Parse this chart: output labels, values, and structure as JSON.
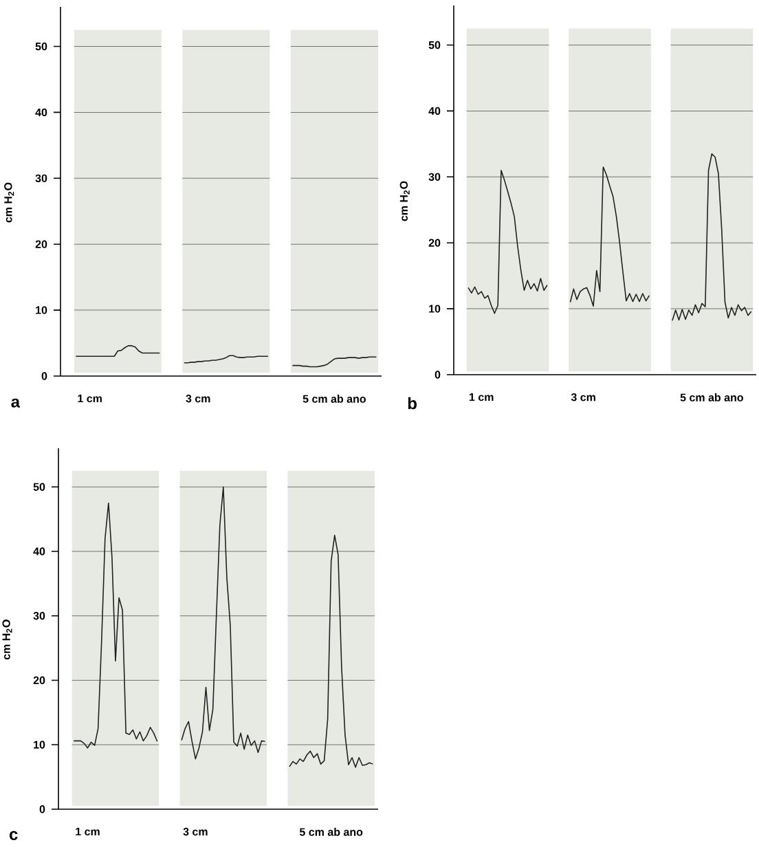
{
  "chart_data": [
    {
      "type": "line",
      "title": "a",
      "ylabel": "cm H$_{2}$O",
      "ylim": [
        0,
        56
      ],
      "yticks": [
        0,
        10,
        20,
        30,
        40,
        50
      ],
      "grid": "y",
      "categories": [
        null,
        null,
        null,
        null,
        "1 cm",
        null,
        null,
        null,
        null,
        null,
        null,
        null,
        null,
        null,
        null,
        null,
        null,
        null,
        null,
        null,
        null,
        null,
        null,
        null,
        null,
        null,
        null,
        null,
        null,
        null,
        null,
        null,
        null,
        null,
        null,
        "3 cm",
        null,
        null,
        null,
        null,
        null,
        null,
        null,
        null,
        null,
        null,
        null,
        null,
        null,
        null,
        null,
        null,
        null,
        null,
        null,
        null,
        null,
        null,
        null,
        null,
        null,
        null,
        null,
        null,
        null,
        null,
        null,
        null,
        null,
        null,
        null,
        null,
        null,
        null,
        "5 cm ab ano",
        null,
        null,
        null,
        null,
        null,
        null,
        null,
        null,
        null,
        null,
        null,
        null
      ],
      "series": [
        {
          "color": "#222222",
          "values": [
            3.0,
            3.0,
            3.0,
            3.0,
            3.0,
            3.0,
            3.0,
            3.0,
            3.0,
            3.0,
            3.0,
            3.0,
            3.8,
            3.9,
            4.3,
            4.6,
            4.6,
            4.4,
            3.8,
            3.5,
            3.5,
            3.5,
            3.5,
            3.5,
            3.5,
            null,
            null,
            null,
            null,
            null,
            null,
            null,
            null,
            null,
            null,
            null,
            null,
            null,
            null,
            null,
            null,
            null,
            null,
            null,
            null,
            null,
            null,
            null,
            null,
            null,
            null,
            null,
            null,
            null,
            null,
            null,
            null,
            null,
            null,
            null,
            null,
            null,
            null,
            null,
            null,
            null,
            null,
            null,
            null,
            null,
            null,
            null,
            null,
            null,
            null,
            null,
            null,
            null,
            null,
            null,
            null,
            null,
            null,
            null,
            null,
            null,
            null
          ]
        },
        {
          "color": "#222222",
          "values": [
            null,
            null,
            null,
            null,
            null,
            null,
            null,
            null,
            null,
            null,
            null,
            null,
            null,
            null,
            null,
            null,
            null,
            null,
            null,
            null,
            null,
            null,
            null,
            null,
            null,
            null,
            null,
            null,
            null,
            null,
            null,
            2.0,
            2.0,
            2.1,
            2.1,
            2.2,
            2.2,
            2.3,
            2.3,
            2.4,
            2.4,
            2.5,
            2.6,
            2.8,
            3.1,
            3.1,
            2.9,
            2.8,
            2.8,
            2.9,
            2.9,
            2.9,
            3.0,
            3.0,
            3.0,
            3.0,
            null,
            null,
            null,
            null,
            null,
            null,
            null,
            null,
            null,
            null,
            null,
            null,
            null,
            null,
            null,
            null,
            null,
            null,
            null,
            null,
            null,
            null,
            null,
            null,
            null,
            null,
            null,
            null,
            null,
            null,
            null
          ]
        },
        {
          "color": "#222222",
          "values": [
            null,
            null,
            null,
            null,
            null,
            null,
            null,
            null,
            null,
            null,
            null,
            null,
            null,
            null,
            null,
            null,
            null,
            null,
            null,
            null,
            null,
            null,
            null,
            null,
            null,
            null,
            null,
            null,
            null,
            null,
            null,
            null,
            null,
            null,
            null,
            null,
            null,
            null,
            null,
            null,
            null,
            null,
            null,
            null,
            null,
            null,
            null,
            null,
            null,
            null,
            null,
            null,
            null,
            null,
            null,
            null,
            null,
            null,
            null,
            null,
            null,
            null,
            1.6,
            1.6,
            1.6,
            1.5,
            1.5,
            1.4,
            1.4,
            1.4,
            1.5,
            1.6,
            1.8,
            2.2,
            2.6,
            2.7,
            2.7,
            2.7,
            2.8,
            2.8,
            2.8,
            2.7,
            2.8,
            2.8,
            2.9,
            2.9,
            2.9
          ]
        }
      ]
    },
    {
      "type": "line",
      "title": "b",
      "ylabel": "cm H$_{2}$O",
      "ylim": [
        0,
        56
      ],
      "yticks": [
        0,
        10,
        20,
        30,
        40,
        50
      ],
      "grid": "y",
      "categories": [
        null,
        null,
        null,
        null,
        "1 cm",
        null,
        null,
        null,
        null,
        null,
        null,
        null,
        null,
        null,
        null,
        null,
        null,
        null,
        null,
        null,
        null,
        null,
        null,
        null,
        null,
        null,
        null,
        null,
        null,
        null,
        null,
        null,
        null,
        null,
        null,
        "3 cm",
        null,
        null,
        null,
        null,
        null,
        null,
        null,
        null,
        null,
        null,
        null,
        null,
        null,
        null,
        null,
        null,
        null,
        null,
        null,
        null,
        null,
        null,
        null,
        null,
        null,
        null,
        null,
        null,
        null,
        null,
        null,
        null,
        null,
        null,
        null,
        null,
        null,
        null,
        "5 cm ab ano",
        null,
        null,
        null,
        null,
        null,
        null,
        null,
        null,
        null,
        null,
        null,
        null
      ],
      "series": [
        {
          "color": "#222222",
          "values": [
            13.2,
            12.4,
            13.3,
            12.2,
            12.6,
            11.6,
            12.0,
            10.5,
            9.3,
            10.5,
            31.0,
            29.5,
            27.8,
            26.0,
            24.0,
            19.5,
            15.8,
            12.8,
            14.3,
            13.0,
            13.8,
            12.7,
            14.6,
            12.8,
            13.6,
            null,
            null,
            null,
            null,
            null,
            null,
            null,
            null,
            null,
            null,
            null,
            null,
            null,
            null,
            null,
            null,
            null,
            null,
            null,
            null,
            null,
            null,
            null,
            null,
            null,
            null,
            null,
            null,
            null,
            null,
            null,
            null,
            null,
            null,
            null,
            null,
            null,
            null,
            null,
            null,
            null,
            null,
            null,
            null,
            null,
            null,
            null,
            null,
            null,
            null,
            null,
            null,
            null,
            null,
            null,
            null,
            null,
            null,
            null,
            null,
            null,
            null
          ]
        },
        {
          "color": "#222222",
          "values": [
            null,
            null,
            null,
            null,
            null,
            null,
            null,
            null,
            null,
            null,
            null,
            null,
            null,
            null,
            null,
            null,
            null,
            null,
            null,
            null,
            null,
            null,
            null,
            null,
            null,
            null,
            null,
            null,
            null,
            null,
            null,
            11.0,
            13.0,
            11.4,
            12.6,
            13.0,
            13.2,
            12.0,
            10.4,
            15.8,
            12.6,
            31.5,
            30.3,
            28.6,
            27.0,
            24.0,
            20.0,
            15.5,
            11.2,
            12.3,
            11.1,
            12.2,
            11.1,
            12.3,
            11.2,
            12.0,
            null,
            null,
            null,
            null,
            null,
            null,
            null,
            null,
            null,
            null,
            null,
            null,
            null,
            null,
            null,
            null,
            null,
            null,
            null,
            null,
            null,
            null,
            null,
            null,
            null,
            null,
            null,
            null,
            null,
            null,
            null
          ]
        },
        {
          "color": "#222222",
          "values": [
            null,
            null,
            null,
            null,
            null,
            null,
            null,
            null,
            null,
            null,
            null,
            null,
            null,
            null,
            null,
            null,
            null,
            null,
            null,
            null,
            null,
            null,
            null,
            null,
            null,
            null,
            null,
            null,
            null,
            null,
            null,
            null,
            null,
            null,
            null,
            null,
            null,
            null,
            null,
            null,
            null,
            null,
            null,
            null,
            null,
            null,
            null,
            null,
            null,
            null,
            null,
            null,
            null,
            null,
            null,
            null,
            null,
            null,
            null,
            null,
            null,
            null,
            8.2,
            9.8,
            8.3,
            9.9,
            8.4,
            9.8,
            9.0,
            10.6,
            9.4,
            10.8,
            10.3,
            31.0,
            33.5,
            33.0,
            30.5,
            22.0,
            11.0,
            8.6,
            10.2,
            9.0,
            10.6,
            9.7,
            10.2,
            9.0,
            9.6
          ]
        }
      ]
    },
    {
      "type": "line",
      "title": "c",
      "ylabel": "cm H$_{2}$O",
      "ylim": [
        0,
        56
      ],
      "yticks": [
        0,
        10,
        20,
        30,
        40,
        50
      ],
      "grid": "y",
      "categories": [
        null,
        null,
        null,
        null,
        "1 cm",
        null,
        null,
        null,
        null,
        null,
        null,
        null,
        null,
        null,
        null,
        null,
        null,
        null,
        null,
        null,
        null,
        null,
        null,
        null,
        null,
        null,
        null,
        null,
        null,
        null,
        null,
        null,
        null,
        null,
        null,
        "3 cm",
        null,
        null,
        null,
        null,
        null,
        null,
        null,
        null,
        null,
        null,
        null,
        null,
        null,
        null,
        null,
        null,
        null,
        null,
        null,
        null,
        null,
        null,
        null,
        null,
        null,
        null,
        null,
        null,
        null,
        null,
        null,
        null,
        null,
        null,
        null,
        null,
        null,
        null,
        "5 cm ab ano",
        null,
        null,
        null,
        null,
        null,
        null,
        null,
        null,
        null,
        null,
        null,
        null
      ],
      "series": [
        {
          "color": "#222222",
          "values": [
            10.6,
            10.6,
            10.6,
            10.2,
            9.5,
            10.4,
            9.9,
            12.5,
            26.0,
            42.0,
            47.5,
            39.0,
            23.0,
            32.8,
            30.9,
            11.8,
            11.6,
            12.3,
            10.9,
            12.0,
            10.6,
            11.4,
            12.7,
            11.8,
            10.5,
            null,
            null,
            null,
            null,
            null,
            null,
            null,
            null,
            null,
            null,
            null,
            null,
            null,
            null,
            null,
            null,
            null,
            null,
            null,
            null,
            null,
            null,
            null,
            null,
            null,
            null,
            null,
            null,
            null,
            null,
            null,
            null,
            null,
            null,
            null,
            null,
            null,
            null,
            null,
            null,
            null,
            null,
            null,
            null,
            null,
            null,
            null,
            null,
            null,
            null,
            null,
            null,
            null,
            null,
            null,
            null,
            null,
            null,
            null,
            null,
            null,
            null
          ]
        },
        {
          "color": "#222222",
          "values": [
            null,
            null,
            null,
            null,
            null,
            null,
            null,
            null,
            null,
            null,
            null,
            null,
            null,
            null,
            null,
            null,
            null,
            null,
            null,
            null,
            null,
            null,
            null,
            null,
            null,
            null,
            null,
            null,
            null,
            null,
            null,
            10.7,
            12.5,
            13.6,
            10.5,
            7.8,
            9.5,
            12.0,
            18.9,
            12.2,
            15.5,
            30.0,
            44.0,
            50.0,
            36.0,
            28.5,
            10.4,
            9.8,
            11.8,
            9.3,
            11.5,
            9.9,
            10.6,
            8.8,
            10.6,
            10.5,
            null,
            null,
            null,
            null,
            null,
            null,
            null,
            null,
            null,
            null,
            null,
            null,
            null,
            null,
            null,
            null,
            null,
            null,
            null,
            null,
            null,
            null,
            null,
            null,
            null,
            null,
            null,
            null,
            null,
            null,
            null
          ]
        },
        {
          "color": "#222222",
          "values": [
            null,
            null,
            null,
            null,
            null,
            null,
            null,
            null,
            null,
            null,
            null,
            null,
            null,
            null,
            null,
            null,
            null,
            null,
            null,
            null,
            null,
            null,
            null,
            null,
            null,
            null,
            null,
            null,
            null,
            null,
            null,
            null,
            null,
            null,
            null,
            null,
            null,
            null,
            null,
            null,
            null,
            null,
            null,
            null,
            null,
            null,
            null,
            null,
            null,
            null,
            null,
            null,
            null,
            null,
            null,
            null,
            null,
            null,
            null,
            null,
            null,
            null,
            6.6,
            7.4,
            7.0,
            7.8,
            7.4,
            8.4,
            9.0,
            8.0,
            8.6,
            7.0,
            7.5,
            14.0,
            38.5,
            42.5,
            39.5,
            22.0,
            11.5,
            6.9,
            8.0,
            6.5,
            8.0,
            6.8,
            6.9,
            7.2,
            7.0
          ]
        }
      ]
    }
  ]
}
